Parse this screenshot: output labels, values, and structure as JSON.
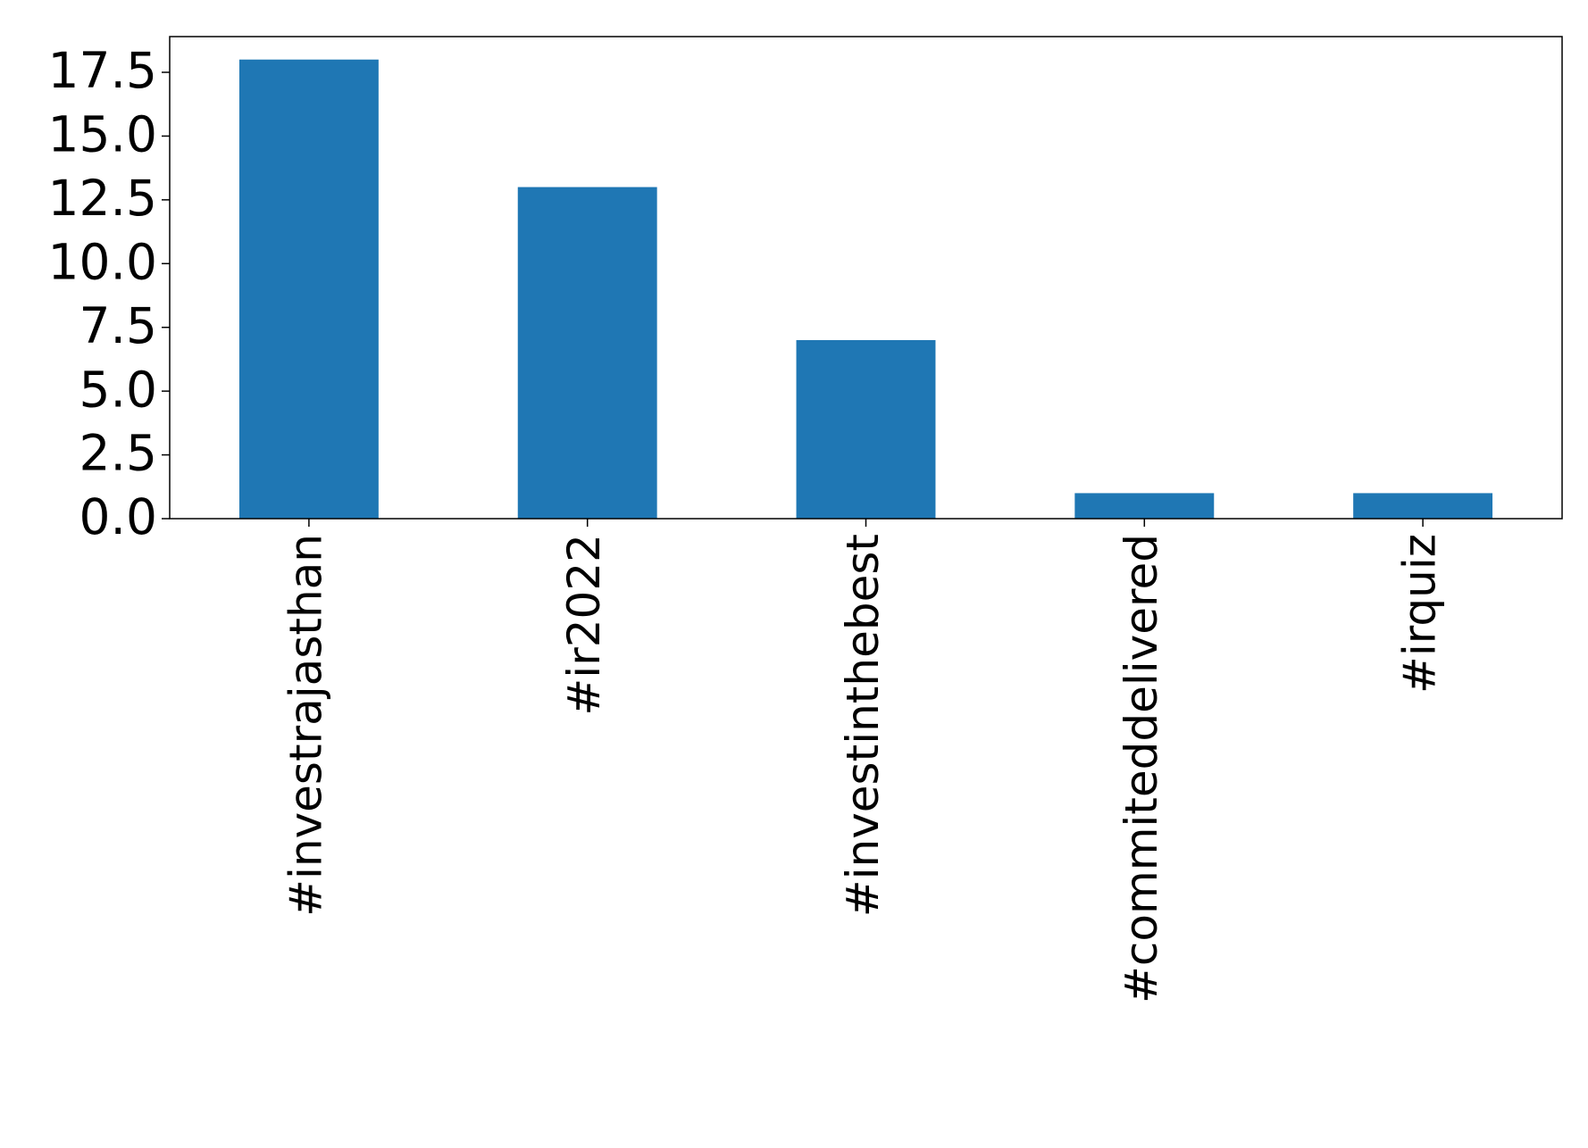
{
  "chart_data": {
    "type": "bar",
    "categories": [
      "#investrajasthan",
      "#ir2022",
      "#investinthebest",
      "#commiteddelivered",
      "#irquiz"
    ],
    "values": [
      18,
      13,
      7,
      1,
      1
    ],
    "color": "#1f77b4",
    "ylim": [
      0,
      18.9
    ],
    "yticks": [
      {
        "value": 0,
        "label": "0.0"
      },
      2.5,
      {
        "value": 5,
        "label": "5.0"
      },
      7.5,
      {
        "value": 10,
        "label": "10.0"
      },
      12.5,
      {
        "value": 15,
        "label": "15.0"
      },
      17.5
    ],
    "grid": false
  }
}
